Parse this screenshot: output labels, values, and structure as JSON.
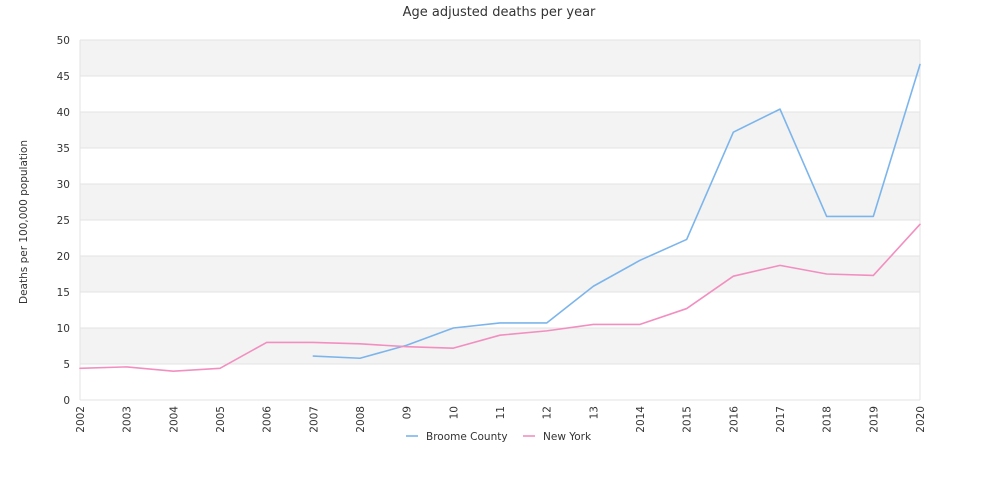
{
  "chart_data": {
    "type": "line",
    "title": "Age adjusted deaths per year",
    "xlabel": "",
    "ylabel": "Deaths per 100,000 population",
    "categories": [
      "2002",
      "2003",
      "2004",
      "2005",
      "2006",
      "2007",
      "2008",
      "09",
      "10",
      "11",
      "12",
      "13",
      "2014",
      "2015",
      "2016",
      "2017",
      "2018",
      "2019",
      "2020"
    ],
    "ylim": [
      0,
      50
    ],
    "yticks": [
      0,
      5,
      10,
      15,
      20,
      25,
      30,
      35,
      40,
      45,
      50
    ],
    "grid": "alternating horizontal bands",
    "legend": "bottom-center",
    "series": [
      {
        "name": "Broome County",
        "color": "#7cb5ec",
        "values": [
          null,
          null,
          null,
          null,
          null,
          6.1,
          5.8,
          7.6,
          10.0,
          10.7,
          10.7,
          15.8,
          19.4,
          22.3,
          37.2,
          40.4,
          25.5,
          25.5,
          46.6
        ]
      },
      {
        "name": "New York",
        "color": "#f28fc0",
        "values": [
          4.4,
          4.6,
          4.0,
          4.4,
          8.0,
          8.0,
          7.8,
          7.4,
          7.2,
          9.0,
          9.6,
          10.5,
          10.5,
          12.7,
          17.2,
          18.7,
          17.5,
          17.3,
          24.4
        ]
      }
    ]
  }
}
